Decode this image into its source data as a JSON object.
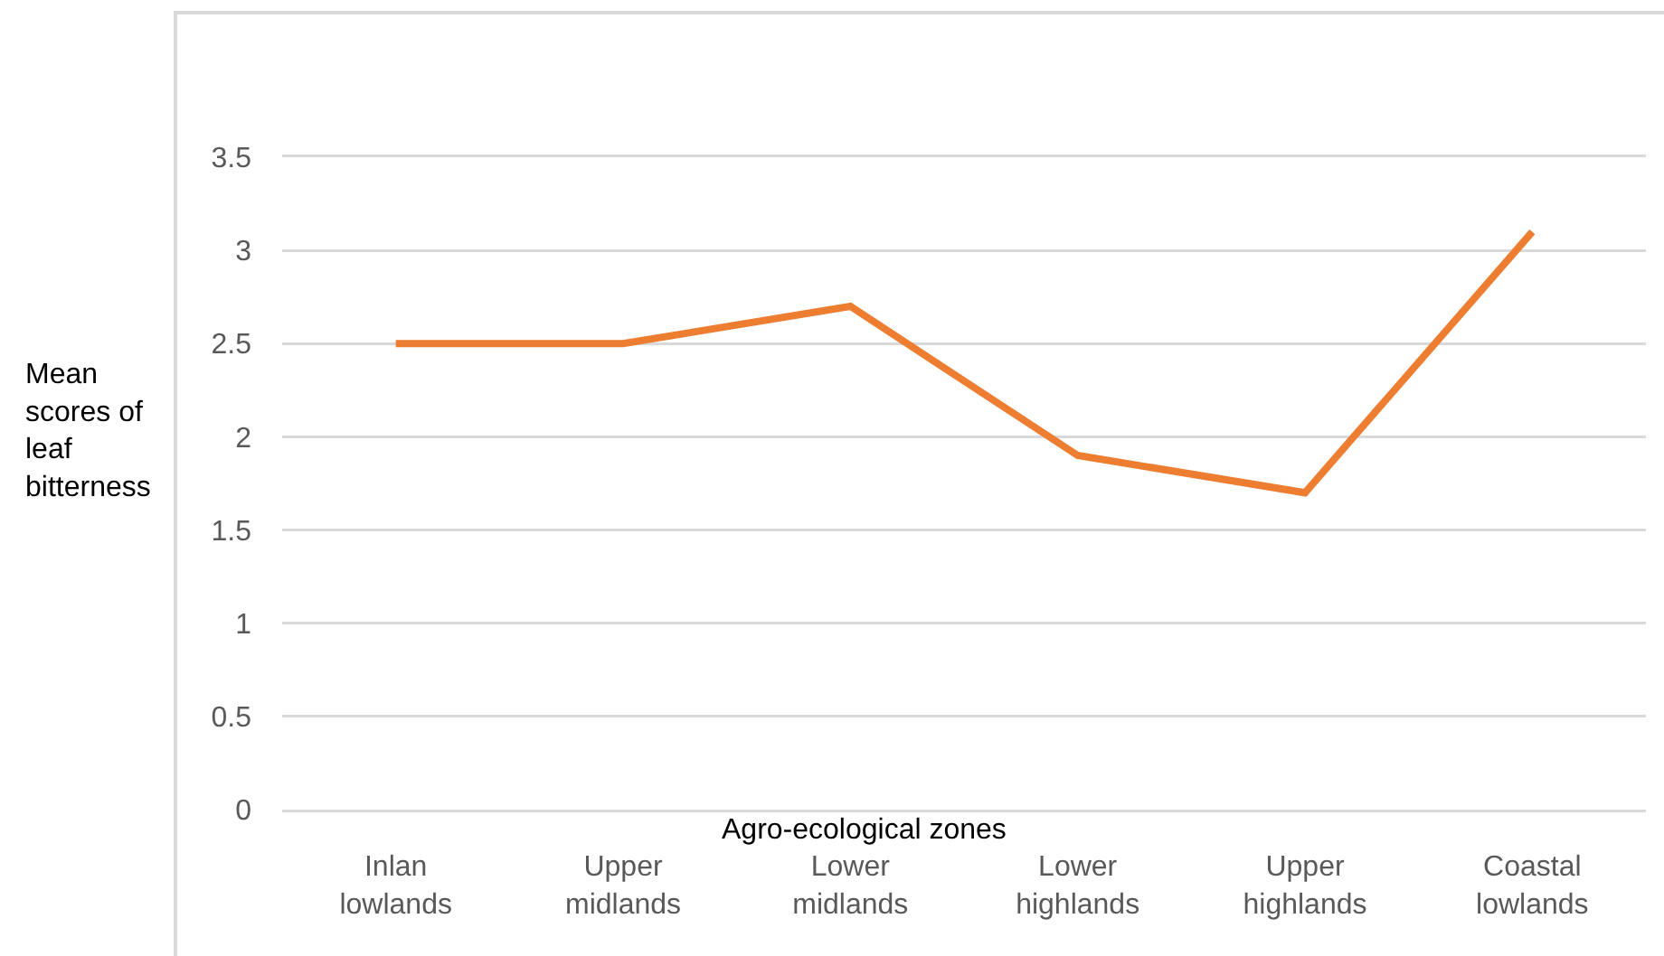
{
  "chart_data": {
    "type": "line",
    "xlabel": "Agro-ecological zones",
    "ylabel": "Mean scores of leaf bitterness",
    "categories": [
      "Inlan lowlands",
      "Upper midlands",
      "Lower midlands",
      "Lower highlands",
      "Upper highlands",
      "Coastal lowlands"
    ],
    "series": [
      {
        "color": "#ed7d31",
        "values": [
          2.5,
          2.5,
          2.7,
          1.9,
          1.7,
          3.1
        ]
      }
    ],
    "ylim": [
      0,
      3.5
    ],
    "yticks": [
      0,
      0.5,
      1,
      1.5,
      2,
      2.5,
      3,
      3.5
    ],
    "grid": "y"
  }
}
